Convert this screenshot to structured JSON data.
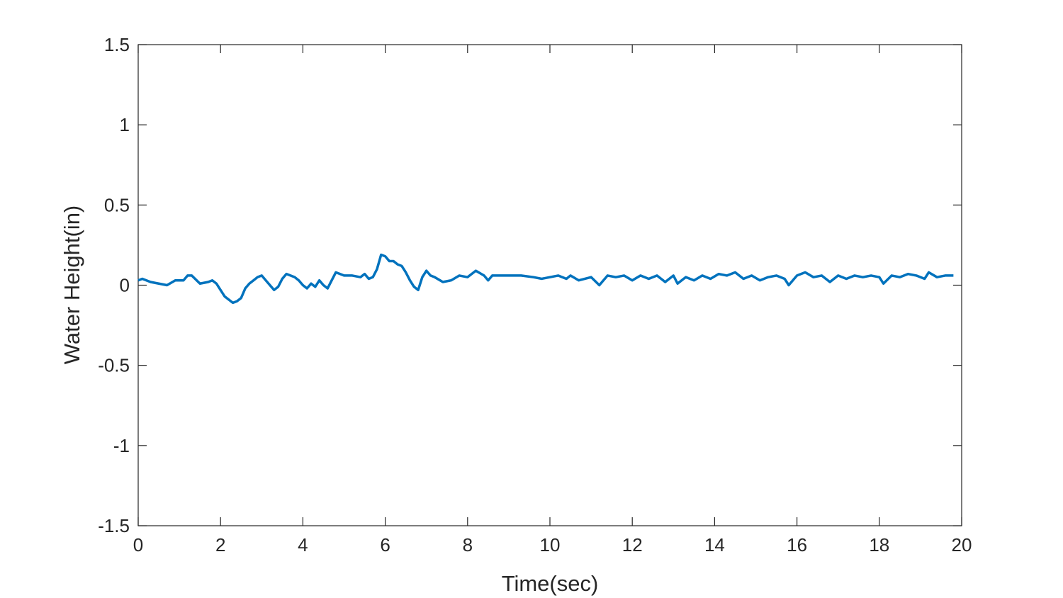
{
  "chart_data": {
    "type": "line",
    "xlabel": "Time(sec)",
    "ylabel": "Water Height(in)",
    "xlim": [
      0,
      20
    ],
    "xticks": [
      0,
      2,
      4,
      6,
      8,
      10,
      12,
      14,
      16,
      18,
      20
    ],
    "ylim": [
      -1.5,
      1.5
    ],
    "yticks": [
      -1.5,
      -1,
      -0.5,
      0,
      0.5,
      1,
      1.5
    ],
    "series": [
      {
        "name": "Water Height",
        "color": "#0072BD",
        "x": [
          0,
          0.1,
          0.3,
          0.5,
          0.7,
          0.9,
          1.1,
          1.2,
          1.3,
          1.5,
          1.7,
          1.8,
          1.9,
          2.0,
          2.1,
          2.2,
          2.3,
          2.4,
          2.5,
          2.6,
          2.7,
          2.8,
          2.9,
          3.0,
          3.1,
          3.2,
          3.3,
          3.4,
          3.5,
          3.6,
          3.7,
          3.8,
          3.9,
          4.0,
          4.1,
          4.2,
          4.3,
          4.4,
          4.5,
          4.6,
          4.7,
          4.8,
          4.9,
          5.0,
          5.2,
          5.4,
          5.5,
          5.6,
          5.7,
          5.8,
          5.9,
          6.0,
          6.1,
          6.2,
          6.3,
          6.4,
          6.5,
          6.6,
          6.7,
          6.8,
          6.9,
          7.0,
          7.1,
          7.2,
          7.4,
          7.6,
          7.8,
          8.0,
          8.2,
          8.4,
          8.5,
          8.6,
          8.8,
          9.0,
          9.3,
          9.6,
          9.8,
          10.0,
          10.2,
          10.4,
          10.5,
          10.7,
          11.0,
          11.2,
          11.4,
          11.6,
          11.8,
          12.0,
          12.2,
          12.4,
          12.6,
          12.8,
          13.0,
          13.1,
          13.3,
          13.5,
          13.7,
          13.9,
          14.1,
          14.3,
          14.5,
          14.7,
          14.9,
          15.1,
          15.3,
          15.5,
          15.7,
          15.8,
          16.0,
          16.2,
          16.4,
          16.6,
          16.8,
          17.0,
          17.2,
          17.4,
          17.6,
          17.8,
          18.0,
          18.1,
          18.3,
          18.5,
          18.7,
          18.9,
          19.1,
          19.2,
          19.4,
          19.6,
          19.8
        ],
        "values": [
          0.03,
          0.04,
          0.02,
          0.01,
          0.0,
          0.03,
          0.03,
          0.06,
          0.06,
          0.01,
          0.02,
          0.03,
          0.01,
          -0.03,
          -0.07,
          -0.09,
          -0.11,
          -0.1,
          -0.08,
          -0.02,
          0.01,
          0.03,
          0.05,
          0.06,
          0.03,
          0.0,
          -0.03,
          -0.01,
          0.04,
          0.07,
          0.06,
          0.05,
          0.03,
          0.0,
          -0.02,
          0.01,
          -0.01,
          0.03,
          0.0,
          -0.02,
          0.03,
          0.08,
          0.07,
          0.06,
          0.06,
          0.05,
          0.07,
          0.04,
          0.05,
          0.1,
          0.19,
          0.18,
          0.15,
          0.15,
          0.13,
          0.12,
          0.08,
          0.03,
          -0.01,
          -0.03,
          0.05,
          0.09,
          0.06,
          0.05,
          0.02,
          0.03,
          0.06,
          0.05,
          0.09,
          0.06,
          0.03,
          0.06,
          0.06,
          0.06,
          0.06,
          0.05,
          0.04,
          0.05,
          0.06,
          0.04,
          0.06,
          0.03,
          0.05,
          0.0,
          0.06,
          0.05,
          0.06,
          0.03,
          0.06,
          0.04,
          0.06,
          0.02,
          0.06,
          0.01,
          0.05,
          0.03,
          0.06,
          0.04,
          0.07,
          0.06,
          0.08,
          0.04,
          0.06,
          0.03,
          0.05,
          0.06,
          0.04,
          0.0,
          0.06,
          0.08,
          0.05,
          0.06,
          0.02,
          0.06,
          0.04,
          0.06,
          0.05,
          0.06,
          0.05,
          0.01,
          0.06,
          0.05,
          0.07,
          0.06,
          0.04,
          0.08,
          0.05,
          0.06,
          0.06
        ]
      }
    ]
  }
}
